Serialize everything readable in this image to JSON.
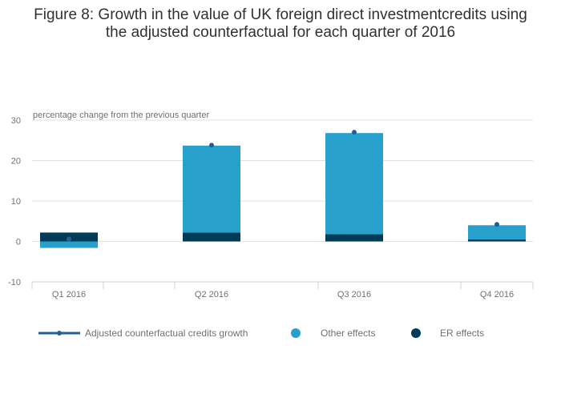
{
  "title_line1": "Figure 8: Growth in the value of UK foreign direct investmentcredits using",
  "title_line2": "the adjusted counterfactual for each quarter of 2016",
  "chart_data": {
    "type": "bar",
    "stacked": true,
    "title": "Figure 8: Growth in the value of UK foreign direct investmentcredits using the adjusted counterfactual for each quarter of 2016",
    "ylabel": "percentage change from the previous quarter",
    "xlabel": "",
    "categories": [
      "Q1 2016",
      "Q2 2016",
      "Q3 2016",
      "Q4 2016"
    ],
    "ylim": [
      -10,
      30
    ],
    "yticks": [
      -10,
      0,
      10,
      20,
      30
    ],
    "grid": true,
    "legend_position": "bottom",
    "series": [
      {
        "name": "ER effects",
        "kind": "bar",
        "color": "#003c57",
        "values": [
          2.2,
          2.2,
          1.8,
          0.5
        ]
      },
      {
        "name": "Other effects",
        "kind": "bar",
        "color": "#27a0cc",
        "values": [
          -1.6,
          21.5,
          25.0,
          3.5
        ]
      },
      {
        "name": "Adjusted counterfactual credits growth",
        "kind": "line-marker",
        "color": "#206095",
        "values": [
          0.6,
          23.8,
          27.0,
          4.2
        ]
      }
    ]
  },
  "legend": [
    {
      "label": "Adjusted counterfactual credits growth",
      "symbol": "line",
      "color": "#206095"
    },
    {
      "label": "Other effects",
      "symbol": "dot",
      "color": "#27a0cc"
    },
    {
      "label": "ER effects",
      "symbol": "dot",
      "color": "#003c57"
    }
  ]
}
